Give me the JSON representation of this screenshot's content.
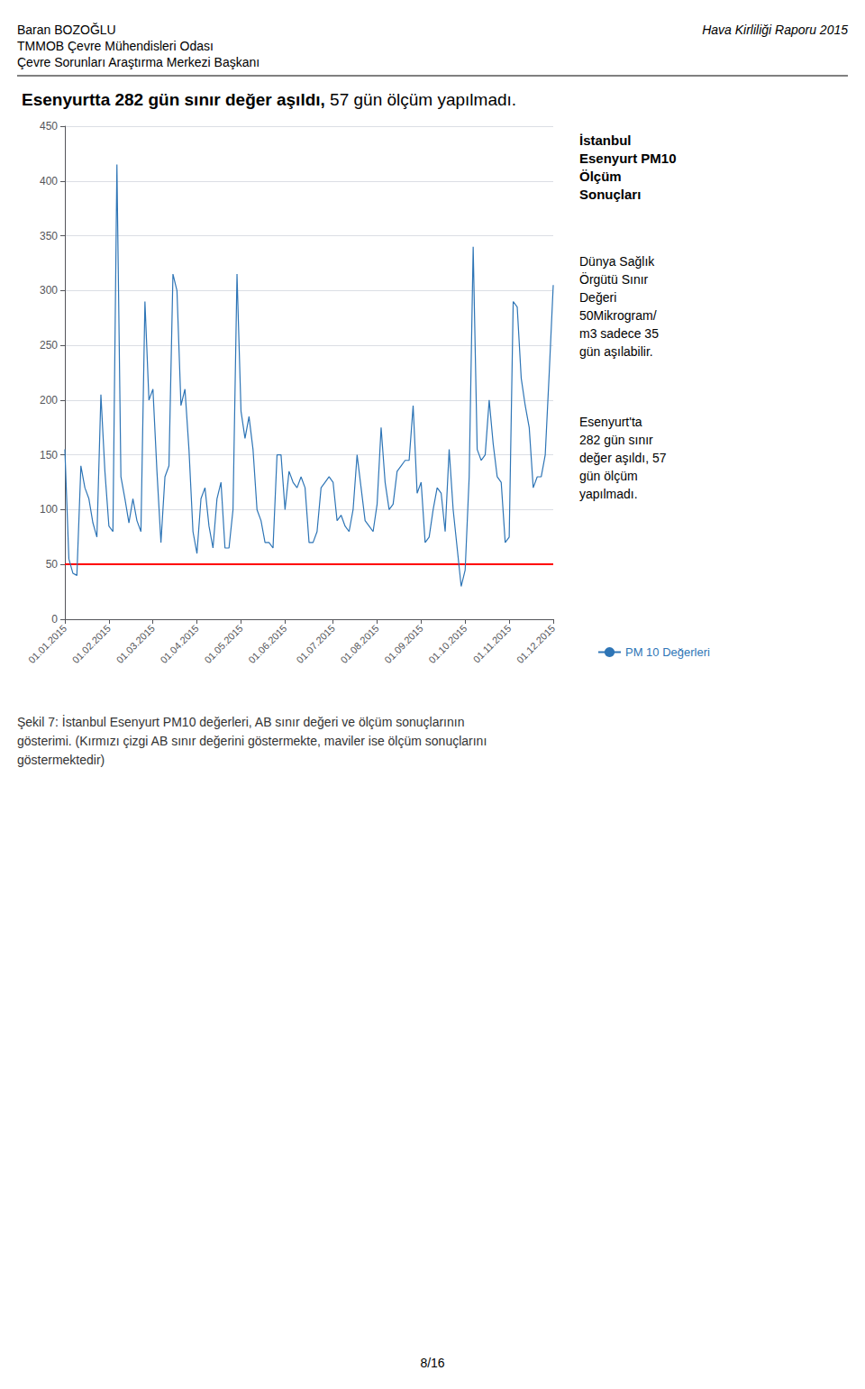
{
  "chart_data": {
    "type": "line",
    "title": [
      "Esenyurtta 282 gün sınır değer aşıldı,",
      " 57 gün ölçüm yapılmadı."
    ],
    "header": [
      "Baran BOZOĞLU",
      "TMMOB Çevre Mühendisleri Odası",
      "Çevre Sorunları Araştırma Merkezi Başkanı"
    ],
    "header_right": "Hava Kirliliği Raporu 2015",
    "annotations": [
      "İstanbul\nEsenyurt PM10\nÖlçüm\nSonuçları",
      "Dünya Sağlık\nÖrgütü Sınır\nDeğeri\n50Mikrogram/\nm3 sadece 35\ngün aşılabilir.",
      "Esenyurt'ta\n282 gün sınır\ndeğer aşıldı, 57\ngün ölçüm\nyapılmadı."
    ],
    "caption": "Şekil 7: İstanbul Esenyurt PM10 değerleri, AB sınır değeri ve ölçüm sonuçlarının\ngösterimi. (Kırmızı çizgi AB sınır değerini göstermekte, maviler ise ölçüm sonuçlarını\ngöstermektedir)",
    "page_number": "8/16",
    "categories": [
      "01.01.2015",
      null,
      null,
      null,
      null,
      null,
      null,
      null,
      null,
      null,
      null,
      "01.02.2015",
      null,
      null,
      null,
      null,
      null,
      null,
      null,
      null,
      null,
      null,
      "01.03.2015",
      null,
      null,
      null,
      null,
      null,
      null,
      null,
      null,
      null,
      null,
      "01.04.2015",
      null,
      null,
      null,
      null,
      null,
      null,
      null,
      null,
      null,
      null,
      "01.05.2015",
      null,
      null,
      null,
      null,
      null,
      null,
      null,
      null,
      null,
      null,
      "01.06.2015",
      null,
      null,
      null,
      null,
      null,
      null,
      null,
      null,
      null,
      null,
      null,
      "01.07.2015",
      null,
      null,
      null,
      null,
      null,
      null,
      null,
      null,
      null,
      null,
      "01.08.2015",
      null,
      null,
      null,
      null,
      null,
      null,
      null,
      null,
      null,
      null,
      "01.09.2015",
      null,
      null,
      null,
      null,
      null,
      null,
      null,
      null,
      null,
      null,
      "01.10.2015",
      null,
      null,
      null,
      null,
      null,
      null,
      null,
      null,
      null,
      null,
      "01.11.2015",
      null,
      null,
      null,
      null,
      null,
      null,
      null,
      null,
      null,
      null,
      "01.12.2015"
    ],
    "series": [
      {
        "name": "PM 10 Değerleri",
        "color": "#2E75B6",
        "values": [
          155,
          55,
          42,
          40,
          140,
          120,
          110,
          88,
          75,
          205,
          135,
          85,
          80,
          415,
          130,
          110,
          88,
          110,
          90,
          80,
          290,
          200,
          210,
          135,
          70,
          130,
          140,
          315,
          300,
          195,
          210,
          155,
          80,
          60,
          110,
          120,
          85,
          65,
          110,
          125,
          65,
          65,
          100,
          315,
          190,
          165,
          185,
          155,
          100,
          90,
          70,
          70,
          65,
          150,
          150,
          100,
          135,
          125,
          120,
          130,
          120,
          70,
          70,
          80,
          120,
          125,
          130,
          125,
          90,
          95,
          85,
          80,
          100,
          150,
          120,
          90,
          85,
          80,
          105,
          175,
          125,
          100,
          105,
          135,
          140,
          145,
          145,
          195,
          115,
          125,
          70,
          75,
          100,
          120,
          115,
          80,
          155,
          100,
          65,
          30,
          45,
          130,
          340,
          155,
          145,
          150,
          200,
          160,
          130,
          125,
          70,
          75,
          290,
          285,
          220,
          195,
          175,
          120,
          130,
          130,
          150,
          225,
          305
        ]
      }
    ],
    "threshold": {
      "value": 50,
      "color": "#FF0000"
    },
    "ylim": [
      0,
      450
    ],
    "yticks": [
      0,
      50,
      100,
      150,
      200,
      250,
      300,
      350,
      400,
      450
    ],
    "grid": true,
    "legend": "lower right"
  }
}
